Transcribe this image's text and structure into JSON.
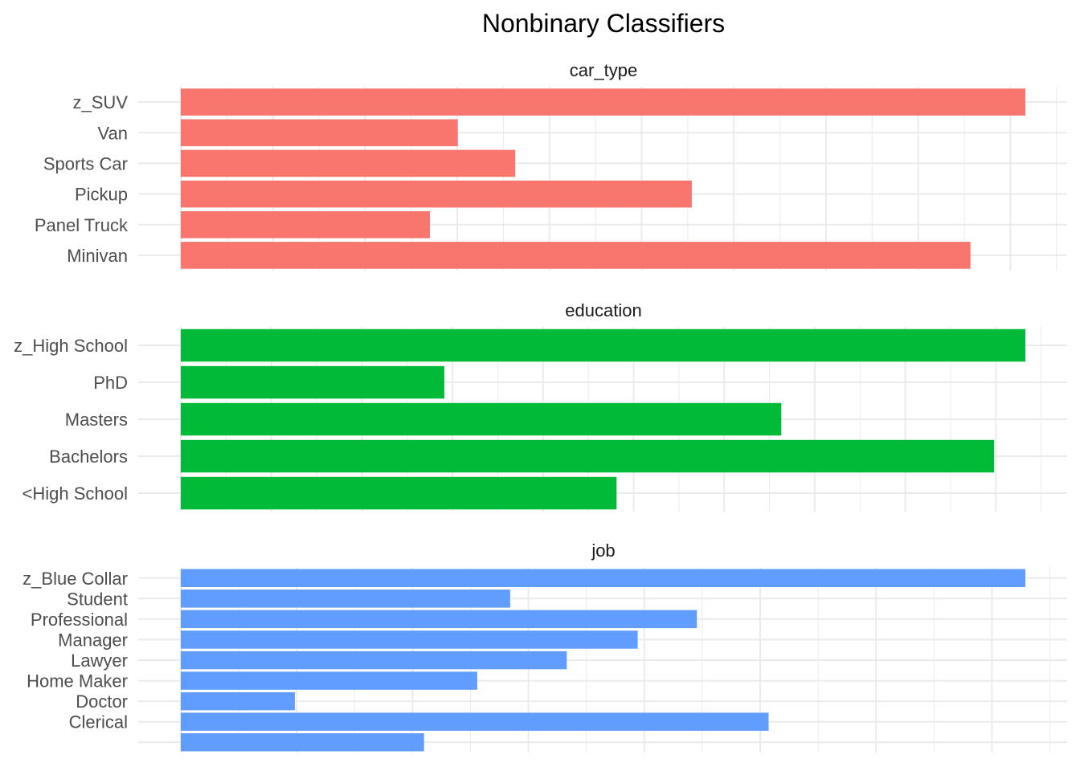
{
  "chart_data": {
    "type": "bar",
    "orientation": "horizontal",
    "title": "Nonbinary Classifiers",
    "xlabel": "",
    "ylabel": "",
    "grid": true,
    "facets": [
      {
        "label": "car_type",
        "color": "#F8766D",
        "xlim": [
          0,
          1
        ],
        "categories": [
          "z_SUV",
          "Van",
          "Sports Car",
          "Pickup",
          "Panel Truck",
          "Minivan"
        ],
        "values": [
          1.0,
          0.328,
          0.396,
          0.605,
          0.295,
          0.935
        ]
      },
      {
        "label": "education",
        "color": "#00BA38",
        "xlim": [
          0,
          1
        ],
        "categories": [
          "z_High School",
          "PhD",
          "Masters",
          "Bachelors",
          "<High School"
        ],
        "values": [
          1.0,
          0.312,
          0.711,
          0.963,
          0.516
        ]
      },
      {
        "label": "job",
        "color": "#619CFF",
        "xlim": [
          0,
          1
        ],
        "categories": [
          "z_Blue Collar",
          "Student",
          "Professional",
          "Manager",
          "Lawyer",
          "Home Maker",
          "Doctor",
          "Clerical",
          ""
        ],
        "values": [
          1.0,
          0.39,
          0.611,
          0.541,
          0.457,
          0.351,
          0.135,
          0.696,
          0.288
        ]
      }
    ]
  }
}
